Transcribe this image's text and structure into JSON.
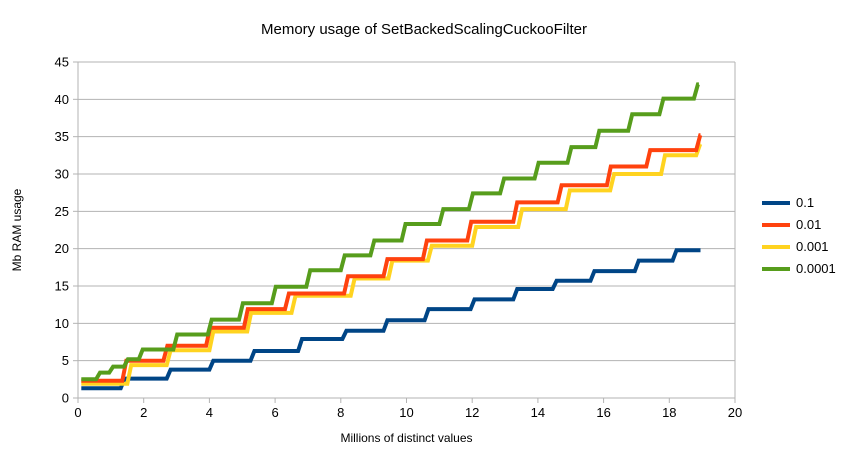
{
  "title": "Memory usage of SetBackedScalingCuckooFilter",
  "chart_data": {
    "type": "line",
    "style": "staircase-step-lines",
    "title": "Memory usage of SetBackedScalingCuckooFilter",
    "xlabel": "Millions of distinct values",
    "ylabel": "Mb RAM usage",
    "xlim": [
      0,
      20
    ],
    "ylim": [
      0,
      45
    ],
    "x_ticks": [
      0,
      2,
      4,
      6,
      8,
      10,
      12,
      14,
      16,
      18,
      20
    ],
    "y_ticks": [
      0,
      5,
      10,
      15,
      20,
      25,
      30,
      35,
      40,
      45
    ],
    "grid": "horizontal",
    "legend_position": "right",
    "x_start": 0.1,
    "riser_width": 0.12,
    "draw_order": [
      0,
      2,
      1,
      3
    ],
    "series": [
      {
        "name": "0.1",
        "color": "#004586",
        "start": 1.3,
        "end": 18.95,
        "steps": [
          [
            1.3,
            2.6
          ],
          [
            2.7,
            3.8
          ],
          [
            4.0,
            5.0
          ],
          [
            5.25,
            6.3
          ],
          [
            6.7,
            7.9
          ],
          [
            8.05,
            9.0
          ],
          [
            9.3,
            10.4
          ],
          [
            10.55,
            11.9
          ],
          [
            11.95,
            13.2
          ],
          [
            13.25,
            14.6
          ],
          [
            14.45,
            15.7
          ],
          [
            15.6,
            17.0
          ],
          [
            16.95,
            18.4
          ],
          [
            18.1,
            19.8
          ]
        ]
      },
      {
        "name": "0.01",
        "color": "#ff420e",
        "start": 2.3,
        "end": 18.95,
        "steps": [
          [
            1.35,
            5.0
          ],
          [
            2.6,
            7.0
          ],
          [
            3.9,
            9.4
          ],
          [
            5.05,
            11.9
          ],
          [
            6.3,
            14.0
          ],
          [
            8.1,
            16.3
          ],
          [
            9.3,
            18.6
          ],
          [
            10.5,
            21.1
          ],
          [
            11.85,
            23.6
          ],
          [
            13.25,
            26.2
          ],
          [
            14.6,
            28.5
          ],
          [
            16.1,
            31.0
          ],
          [
            17.3,
            33.2
          ],
          [
            18.82,
            35.2
          ]
        ]
      },
      {
        "name": "0.001",
        "color": "#ffd320",
        "start": 1.9,
        "end": 18.95,
        "steps": [
          [
            1.5,
            4.4
          ],
          [
            2.7,
            6.4
          ],
          [
            4.0,
            8.9
          ],
          [
            5.15,
            11.4
          ],
          [
            6.5,
            13.7
          ],
          [
            8.3,
            16.0
          ],
          [
            9.45,
            18.4
          ],
          [
            10.65,
            20.4
          ],
          [
            12.0,
            22.9
          ],
          [
            13.4,
            25.3
          ],
          [
            14.85,
            27.8
          ],
          [
            16.2,
            30.0
          ],
          [
            17.75,
            32.5
          ],
          [
            18.82,
            34.0
          ]
        ]
      },
      {
        "name": "0.0001",
        "color": "#579d1c",
        "start": 2.5,
        "end": 18.9,
        "steps": [
          [
            0.55,
            3.4
          ],
          [
            0.95,
            4.2
          ],
          [
            1.4,
            5.2
          ],
          [
            1.85,
            6.5
          ],
          [
            2.9,
            8.5
          ],
          [
            3.95,
            10.5
          ],
          [
            4.9,
            12.7
          ],
          [
            5.9,
            14.9
          ],
          [
            6.95,
            17.1
          ],
          [
            8.0,
            19.1
          ],
          [
            8.9,
            21.1
          ],
          [
            9.85,
            23.3
          ],
          [
            11.0,
            25.3
          ],
          [
            11.9,
            27.4
          ],
          [
            12.85,
            29.4
          ],
          [
            13.9,
            31.5
          ],
          [
            14.9,
            33.6
          ],
          [
            15.75,
            35.8
          ],
          [
            16.75,
            38.0
          ],
          [
            17.7,
            40.1
          ],
          [
            18.75,
            42.0
          ]
        ]
      }
    ]
  },
  "legend": {
    "items": [
      {
        "label": "0.1",
        "color": "#004586"
      },
      {
        "label": "0.01",
        "color": "#ff420e"
      },
      {
        "label": "0.001",
        "color": "#ffd320"
      },
      {
        "label": "0.0001",
        "color": "#579d1c"
      }
    ]
  },
  "colors": {
    "grid": "#b3b3b3",
    "axis": "#b3b3b3",
    "text": "#000000",
    "background": "#ffffff"
  }
}
